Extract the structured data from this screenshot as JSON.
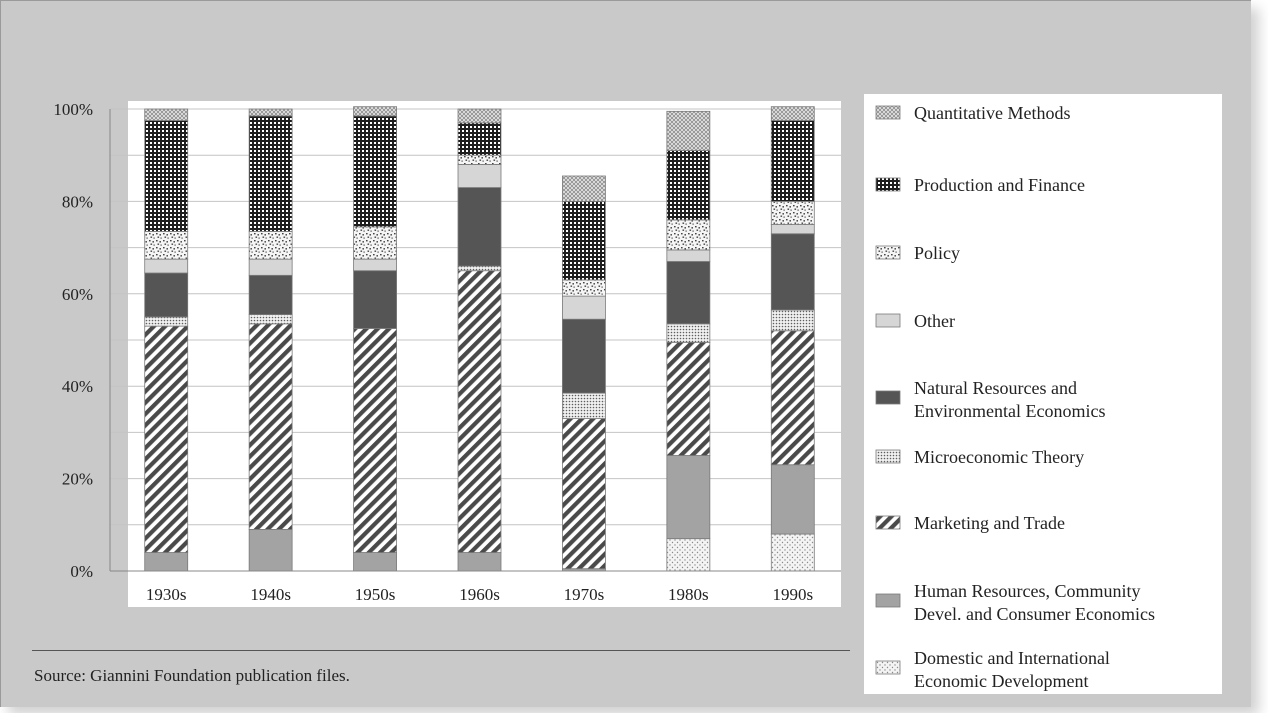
{
  "colors": {
    "page_bg": "#c9c9c9",
    "plot_bg": "#ffffff",
    "legend_bg": "#ffffff",
    "grid": "#c4c4c4",
    "bar_border": "#7a7a7a"
  },
  "source_note": "Source: Giannini Foundation publication files.",
  "chart_data": {
    "type": "bar",
    "stacked": true,
    "percent": true,
    "title": "",
    "xlabel": "",
    "ylabel": "",
    "ylim": [
      0,
      100
    ],
    "yticks": [
      0,
      20,
      40,
      60,
      80,
      100
    ],
    "ytick_labels": [
      "0%",
      "20%",
      "40%",
      "60%",
      "80%",
      "100%"
    ],
    "grid": true,
    "legend_position": "right",
    "categories": [
      "1930s",
      "1940s",
      "1950s",
      "1960s",
      "1970s",
      "1980s",
      "1990s"
    ],
    "series": [
      {
        "name": "Domestic and International Economic Development",
        "pattern": "fine-dots",
        "values": [
          0,
          0,
          0,
          0,
          0,
          7,
          8
        ]
      },
      {
        "name": "Human Resources, Community Devel. and Consumer Economics",
        "pattern": "medium-gray",
        "values": [
          4,
          9,
          4,
          4,
          0.5,
          18,
          15
        ]
      },
      {
        "name": "Marketing and Trade",
        "pattern": "diagonal-stripes",
        "values": [
          49,
          44.5,
          48.5,
          61,
          32.5,
          24.5,
          29
        ]
      },
      {
        "name": "Microeconomic Theory",
        "pattern": "dense-dots",
        "values": [
          2,
          2,
          0,
          1,
          5.5,
          4,
          4.5
        ]
      },
      {
        "name": "Natural Resources and Environmental Economics",
        "pattern": "dark-gray",
        "values": [
          9.5,
          8.5,
          12.5,
          17,
          16,
          13.5,
          16.5
        ]
      },
      {
        "name": "Other",
        "pattern": "light-gray",
        "values": [
          3,
          3.5,
          2.5,
          5,
          5,
          2.5,
          2
        ]
      },
      {
        "name": "Policy",
        "pattern": "speckle",
        "values": [
          6,
          6,
          7,
          2,
          3.5,
          6.5,
          5
        ]
      },
      {
        "name": "Production and Finance",
        "pattern": "checker-grid",
        "values": [
          24,
          25,
          24,
          7,
          17,
          15,
          17.5
        ]
      },
      {
        "name": "Quantitative Methods",
        "pattern": "crosshatch",
        "values": [
          2.5,
          1.5,
          2,
          3,
          5.5,
          8.5,
          3
        ]
      }
    ]
  }
}
